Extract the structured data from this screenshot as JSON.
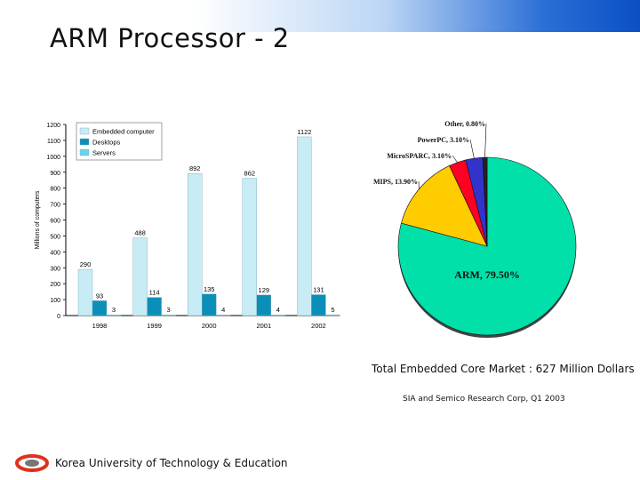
{
  "slide": {
    "title": "ARM Processor - 2",
    "caption": "Total Embedded Core Market : 627 Million Dollars",
    "source": "SIA and Semico Research Corp, Q1 2003",
    "footer": "Korea University of Technology & Education"
  },
  "chart_data": [
    {
      "type": "bar",
      "title": "",
      "xlabel": "",
      "ylabel": "Millions of computers",
      "ylim": [
        0,
        1200
      ],
      "yticks": [
        0,
        100,
        200,
        300,
        400,
        500,
        600,
        700,
        800,
        900,
        1000,
        1100,
        1200
      ],
      "categories": [
        "1998",
        "1999",
        "2000",
        "2001",
        "2002"
      ],
      "legend_position": "top-left",
      "series": [
        {
          "name": "Embedded computer",
          "color": "#c8ecf6",
          "values": [
            290,
            488,
            892,
            862,
            1122
          ]
        },
        {
          "name": "Desktops",
          "color": "#0b8fb9",
          "values": [
            93,
            114,
            135,
            129,
            131
          ]
        },
        {
          "name": "Servers",
          "color": "#6cd3e6",
          "values": [
            3,
            3,
            4,
            4,
            5
          ]
        }
      ]
    },
    {
      "type": "pie",
      "title": "",
      "slices": [
        {
          "label": "ARM, 79.50%",
          "value": 79.5,
          "color": "#00e0a8"
        },
        {
          "label": "MIPS, 13.90%",
          "value": 13.9,
          "color": "#ffcc00"
        },
        {
          "label": "MicroSPARC, 3.10%",
          "value": 3.1,
          "color": "#ff0022"
        },
        {
          "label": "PowerPC, 3.10%",
          "value": 3.1,
          "color": "#3333cc"
        },
        {
          "label": "Other, 0.80%",
          "value": 0.8,
          "color": "#222222"
        }
      ]
    }
  ]
}
